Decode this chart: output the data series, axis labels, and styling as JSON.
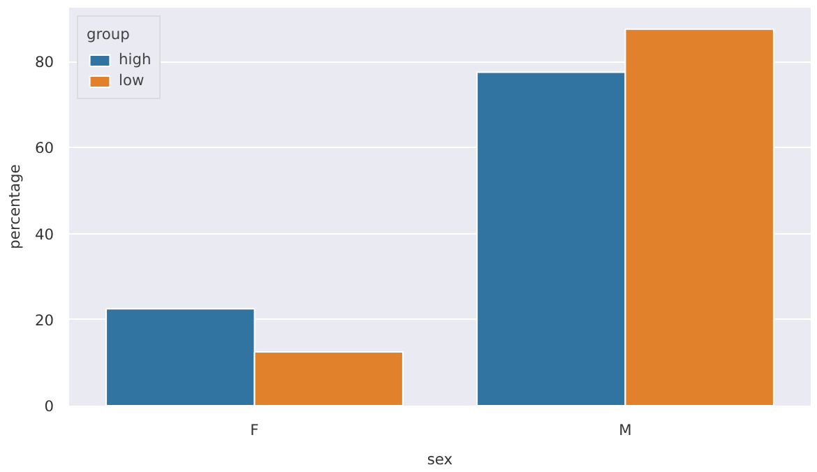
{
  "chart_data": {
    "type": "bar",
    "xlabel": "sex",
    "ylabel": "percentage",
    "legend_title": "group",
    "categories": [
      "F",
      "M"
    ],
    "series": [
      {
        "name": "high",
        "color": "#3274a1",
        "values": [
          22.5,
          77.5
        ]
      },
      {
        "name": "low",
        "color": "#e1812c",
        "values": [
          12.5,
          87.5
        ]
      }
    ],
    "ylim": [
      0,
      92.5
    ],
    "yticks": [
      0,
      20,
      40,
      60,
      80
    ],
    "grid": "y",
    "legend": "top left"
  }
}
